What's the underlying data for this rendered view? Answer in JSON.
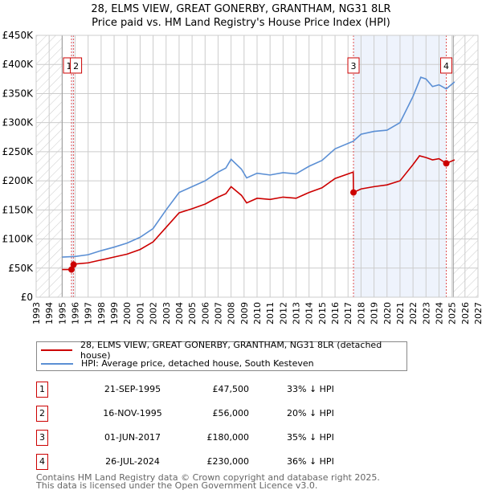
{
  "chart_data": {
    "type": "line",
    "title": "28, ELMS VIEW, GREAT GONERBY, GRANTHAM, NG31 8LR",
    "subtitle": "Price paid vs. HM Land Registry's House Price Index (HPI)",
    "xlim": [
      1993,
      2027
    ],
    "ylim": [
      0,
      450000
    ],
    "y_ticks": [
      0,
      50000,
      100000,
      150000,
      200000,
      250000,
      300000,
      350000,
      400000,
      450000
    ],
    "y_tick_labels": [
      "£0",
      "£50K",
      "£100K",
      "£150K",
      "£200K",
      "£250K",
      "£300K",
      "£350K",
      "£400K",
      "£450K"
    ],
    "x_ticks": [
      1993,
      1994,
      1995,
      1996,
      1997,
      1998,
      1999,
      2000,
      2001,
      2002,
      2003,
      2004,
      2005,
      2006,
      2007,
      2008,
      2009,
      2010,
      2011,
      2012,
      2013,
      2014,
      2015,
      2016,
      2017,
      2018,
      2019,
      2020,
      2021,
      2022,
      2023,
      2024,
      2025,
      2026,
      2027
    ],
    "hatched_before": 1995,
    "hatched_after": 2025.1,
    "grid": true,
    "series": [
      {
        "name": "28, ELMS VIEW, GREAT GONERBY, GRANTHAM, NG31 8LR (detached house)",
        "color": "#cc0000",
        "points": [
          [
            1995,
            47500
          ],
          [
            1995.72,
            47500
          ],
          [
            1995.88,
            56000
          ],
          [
            1996,
            57000
          ],
          [
            1997,
            59000
          ],
          [
            1998,
            64000
          ],
          [
            1999,
            69000
          ],
          [
            2000,
            74000
          ],
          [
            2001,
            82000
          ],
          [
            2002,
            95000
          ],
          [
            2003,
            120000
          ],
          [
            2004,
            145000
          ],
          [
            2005,
            152000
          ],
          [
            2006,
            160000
          ],
          [
            2007,
            172000
          ],
          [
            2007.6,
            178000
          ],
          [
            2008,
            190000
          ],
          [
            2008.8,
            175000
          ],
          [
            2009.2,
            162000
          ],
          [
            2010,
            170000
          ],
          [
            2011,
            168000
          ],
          [
            2012,
            172000
          ],
          [
            2013,
            170000
          ],
          [
            2014,
            180000
          ],
          [
            2015,
            188000
          ],
          [
            2016,
            204000
          ],
          [
            2017.4,
            215000
          ],
          [
            2017.42,
            180000
          ],
          [
            2018,
            186000
          ],
          [
            2019,
            190000
          ],
          [
            2020,
            193000
          ],
          [
            2021,
            200000
          ],
          [
            2022,
            228000
          ],
          [
            2022.5,
            243000
          ],
          [
            2023,
            240000
          ],
          [
            2023.5,
            236000
          ],
          [
            2024,
            238000
          ],
          [
            2024.56,
            230000
          ],
          [
            2025.2,
            236000
          ]
        ]
      },
      {
        "name": "HPI: Average price, detached house, South Kesteven",
        "color": "#5b8fd4",
        "points": [
          [
            1995,
            69000
          ],
          [
            1996,
            70000
          ],
          [
            1997,
            73000
          ],
          [
            1998,
            80000
          ],
          [
            1999,
            86000
          ],
          [
            2000,
            93000
          ],
          [
            2001,
            103000
          ],
          [
            2002,
            118000
          ],
          [
            2003,
            150000
          ],
          [
            2004,
            180000
          ],
          [
            2005,
            190000
          ],
          [
            2006,
            200000
          ],
          [
            2007,
            215000
          ],
          [
            2007.6,
            222000
          ],
          [
            2008,
            237000
          ],
          [
            2008.8,
            220000
          ],
          [
            2009.2,
            205000
          ],
          [
            2010,
            213000
          ],
          [
            2011,
            210000
          ],
          [
            2012,
            214000
          ],
          [
            2013,
            212000
          ],
          [
            2014,
            225000
          ],
          [
            2015,
            235000
          ],
          [
            2016,
            255000
          ],
          [
            2017.4,
            268000
          ],
          [
            2018,
            280000
          ],
          [
            2019,
            285000
          ],
          [
            2020,
            287000
          ],
          [
            2021,
            300000
          ],
          [
            2022,
            345000
          ],
          [
            2022.6,
            378000
          ],
          [
            2023,
            375000
          ],
          [
            2023.5,
            362000
          ],
          [
            2024,
            365000
          ],
          [
            2024.56,
            358000
          ],
          [
            2025.2,
            370000
          ]
        ]
      }
    ],
    "sales": [
      {
        "id": "1",
        "year": 1995.72,
        "price": 47500
      },
      {
        "id": "2",
        "year": 1995.88,
        "price": 56000
      },
      {
        "id": "3",
        "year": 2017.42,
        "price": 180000
      },
      {
        "id": "4",
        "year": 2024.56,
        "price": 230000
      }
    ],
    "highlight_ranges": [
      [
        1995.72,
        1995.88
      ],
      [
        2017.42,
        2024.56
      ]
    ]
  },
  "title": {
    "line1": "28, ELMS VIEW, GREAT GONERBY, GRANTHAM, NG31 8LR",
    "line2": "Price paid vs. HM Land Registry's House Price Index (HPI)"
  },
  "legend": {
    "property": "28, ELMS VIEW, GREAT GONERBY, GRANTHAM, NG31 8LR (detached house)",
    "hpi": "HPI: Average price, detached house, South Kesteven"
  },
  "table": [
    {
      "num": "1",
      "date": "21-SEP-1995",
      "price": "£47,500",
      "hpi": "33% ↓ HPI"
    },
    {
      "num": "2",
      "date": "16-NOV-1995",
      "price": "£56,000",
      "hpi": "20% ↓ HPI"
    },
    {
      "num": "3",
      "date": "01-JUN-2017",
      "price": "£180,000",
      "hpi": "35% ↓ HPI"
    },
    {
      "num": "4",
      "date": "26-JUL-2024",
      "price": "£230,000",
      "hpi": "36% ↓ HPI"
    }
  ],
  "footer": {
    "line1": "Contains HM Land Registry data © Crown copyright and database right 2025.",
    "line2": "This data is licensed under the Open Government Licence v3.0."
  }
}
